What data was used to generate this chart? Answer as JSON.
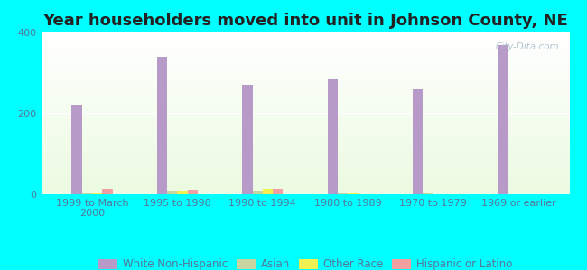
{
  "title": "Year householders moved into unit in Johnson County, NE",
  "categories": [
    "1999 to March\n2000",
    "1995 to 1998",
    "1990 to 1994",
    "1980 to 1989",
    "1970 to 1979",
    "1969 or earlier"
  ],
  "series": {
    "White Non-Hispanic": [
      220,
      340,
      270,
      285,
      260,
      370
    ],
    "Asian": [
      5,
      8,
      10,
      5,
      4,
      0
    ],
    "Other Race": [
      5,
      10,
      14,
      4,
      0,
      0
    ],
    "Hispanic or Latino": [
      14,
      12,
      13,
      0,
      0,
      0
    ]
  },
  "colors": {
    "White Non-Hispanic": "#b89ac8",
    "Asian": "#c8d4a0",
    "Other Race": "#f0f050",
    "Hispanic or Latino": "#f0a0a0"
  },
  "background_outer": "#00ffff",
  "ylim": [
    0,
    400
  ],
  "yticks": [
    0,
    200,
    400
  ],
  "bar_width": 0.12,
  "title_fontsize": 13,
  "tick_fontsize": 8,
  "legend_fontsize": 8.5
}
